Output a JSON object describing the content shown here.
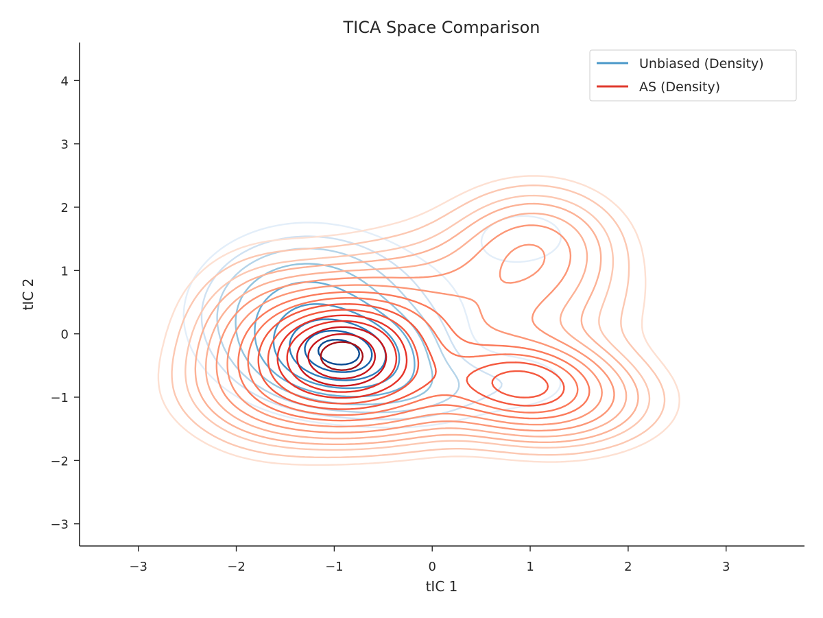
{
  "chart_data": {
    "type": "contour",
    "title": "TICA Space Comparison",
    "xlabel": "tIC 1",
    "ylabel": "tIC 2",
    "xlim": [
      -3.6,
      3.8
    ],
    "ylim": [
      -3.35,
      4.6
    ],
    "x_ticks": [
      -3,
      -2,
      -1,
      0,
      1,
      2,
      3
    ],
    "y_ticks": [
      -3,
      -2,
      -1,
      0,
      1,
      2,
      3,
      4
    ],
    "x_tick_labels": [
      "−3",
      "−2",
      "−1",
      "0",
      "1",
      "2",
      "3"
    ],
    "y_tick_labels": [
      "−3",
      "−2",
      "−1",
      "0",
      "1",
      "2",
      "3",
      "4"
    ],
    "legend_position": "top-right",
    "grid": false,
    "series": [
      {
        "name": "Unbiased (Density)",
        "legend_color": "#4a98c9",
        "colormap": [
          "#e3eef9",
          "#cfe1f2",
          "#b5d4e9",
          "#93c4de",
          "#6aaed6",
          "#4a98c9",
          "#2e7ebc",
          "#1764ab",
          "#084a91"
        ],
        "components": [
          {
            "mx": -0.9,
            "my": -0.35,
            "sx": 0.45,
            "sy": 0.4,
            "w": 1.0
          },
          {
            "mx": -1.3,
            "my": 0.3,
            "sx": 0.6,
            "sy": 0.7,
            "w": 0.55
          },
          {
            "mx": -0.2,
            "my": -0.9,
            "sx": 0.5,
            "sy": 0.35,
            "w": 0.2
          },
          {
            "mx": 0.95,
            "my": 1.55,
            "sx": 0.4,
            "sy": 0.35,
            "w": 0.09
          },
          {
            "mx": 0.95,
            "my": -0.8,
            "sx": 0.45,
            "sy": 0.35,
            "w": 0.08
          },
          {
            "mx": 0.1,
            "my": 0.4,
            "sx": 0.9,
            "sy": 0.8,
            "w": 0.05
          }
        ],
        "levels": [
          0.05,
          0.09,
          0.14,
          0.22,
          0.33,
          0.48,
          0.64,
          0.8,
          0.92
        ]
      },
      {
        "name": "AS (Density)",
        "legend_color": "#e03a2d",
        "colormap": [
          "#fde0d2",
          "#fcc8b2",
          "#fcb296",
          "#fc9777",
          "#fb7a5a",
          "#f4593f",
          "#e63328",
          "#c9171c",
          "#a50f15"
        ],
        "components": [
          {
            "mx": -0.9,
            "my": -0.2,
            "sx": 0.55,
            "sy": 0.55,
            "w": 1.0
          },
          {
            "mx": -0.8,
            "my": -0.9,
            "sx": 0.8,
            "sy": 0.5,
            "w": 0.5
          },
          {
            "mx": 0.9,
            "my": -0.75,
            "sx": 0.5,
            "sy": 0.4,
            "w": 0.55
          },
          {
            "mx": 1.3,
            "my": -1.1,
            "sx": 0.6,
            "sy": 0.45,
            "w": 0.3
          },
          {
            "mx": 1.05,
            "my": 1.4,
            "sx": 0.5,
            "sy": 0.55,
            "w": 0.28
          },
          {
            "mx": 0.3,
            "my": 0.4,
            "sx": 0.9,
            "sy": 0.7,
            "w": 0.3
          },
          {
            "mx": -1.7,
            "my": -0.2,
            "sx": 0.5,
            "sy": 0.8,
            "w": 0.25
          }
        ],
        "levels": [
          0.03,
          0.05,
          0.08,
          0.11,
          0.15,
          0.2,
          0.26,
          0.33,
          0.4,
          0.48,
          0.56,
          0.64,
          0.72,
          0.8,
          0.88,
          0.95
        ]
      }
    ]
  }
}
